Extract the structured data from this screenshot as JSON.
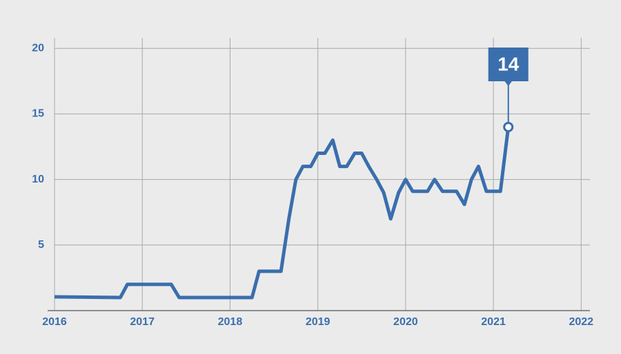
{
  "chart_data": {
    "type": "line",
    "x": [
      2016,
      2016.75,
      2016.83,
      2017.33,
      2017.42,
      2018.25,
      2018.33,
      2018.58,
      2018.67,
      2018.75,
      2018.83,
      2018.92,
      2019,
      2019.08,
      2019.17,
      2019.25,
      2019.33,
      2019.42,
      2019.5,
      2019.58,
      2019.67,
      2019.75,
      2019.83,
      2019.92,
      2020,
      2020.08,
      2020.25,
      2020.33,
      2020.42,
      2020.58,
      2020.67,
      2020.75,
      2020.83,
      2020.92,
      2021.08,
      2021.17
    ],
    "series": [
      {
        "color": "#3a6ead",
        "values": [
          1.05,
          1,
          2,
          2,
          1,
          1,
          3,
          3,
          7,
          10,
          11,
          11,
          12,
          12,
          13,
          11,
          11,
          12,
          12,
          11,
          10,
          9,
          7,
          9,
          10,
          9.1,
          9.1,
          10,
          9.1,
          9.1,
          8.1,
          10,
          11,
          9.1,
          9.1,
          14
        ]
      }
    ],
    "xlim": [
      2016,
      2022.1
    ],
    "xticks": [
      2016,
      2017,
      2018,
      2019,
      2020,
      2021,
      2022
    ],
    "ylim": [
      0,
      20.8
    ],
    "yticks": [
      5,
      10,
      15,
      20
    ],
    "grid": true
  }
}
